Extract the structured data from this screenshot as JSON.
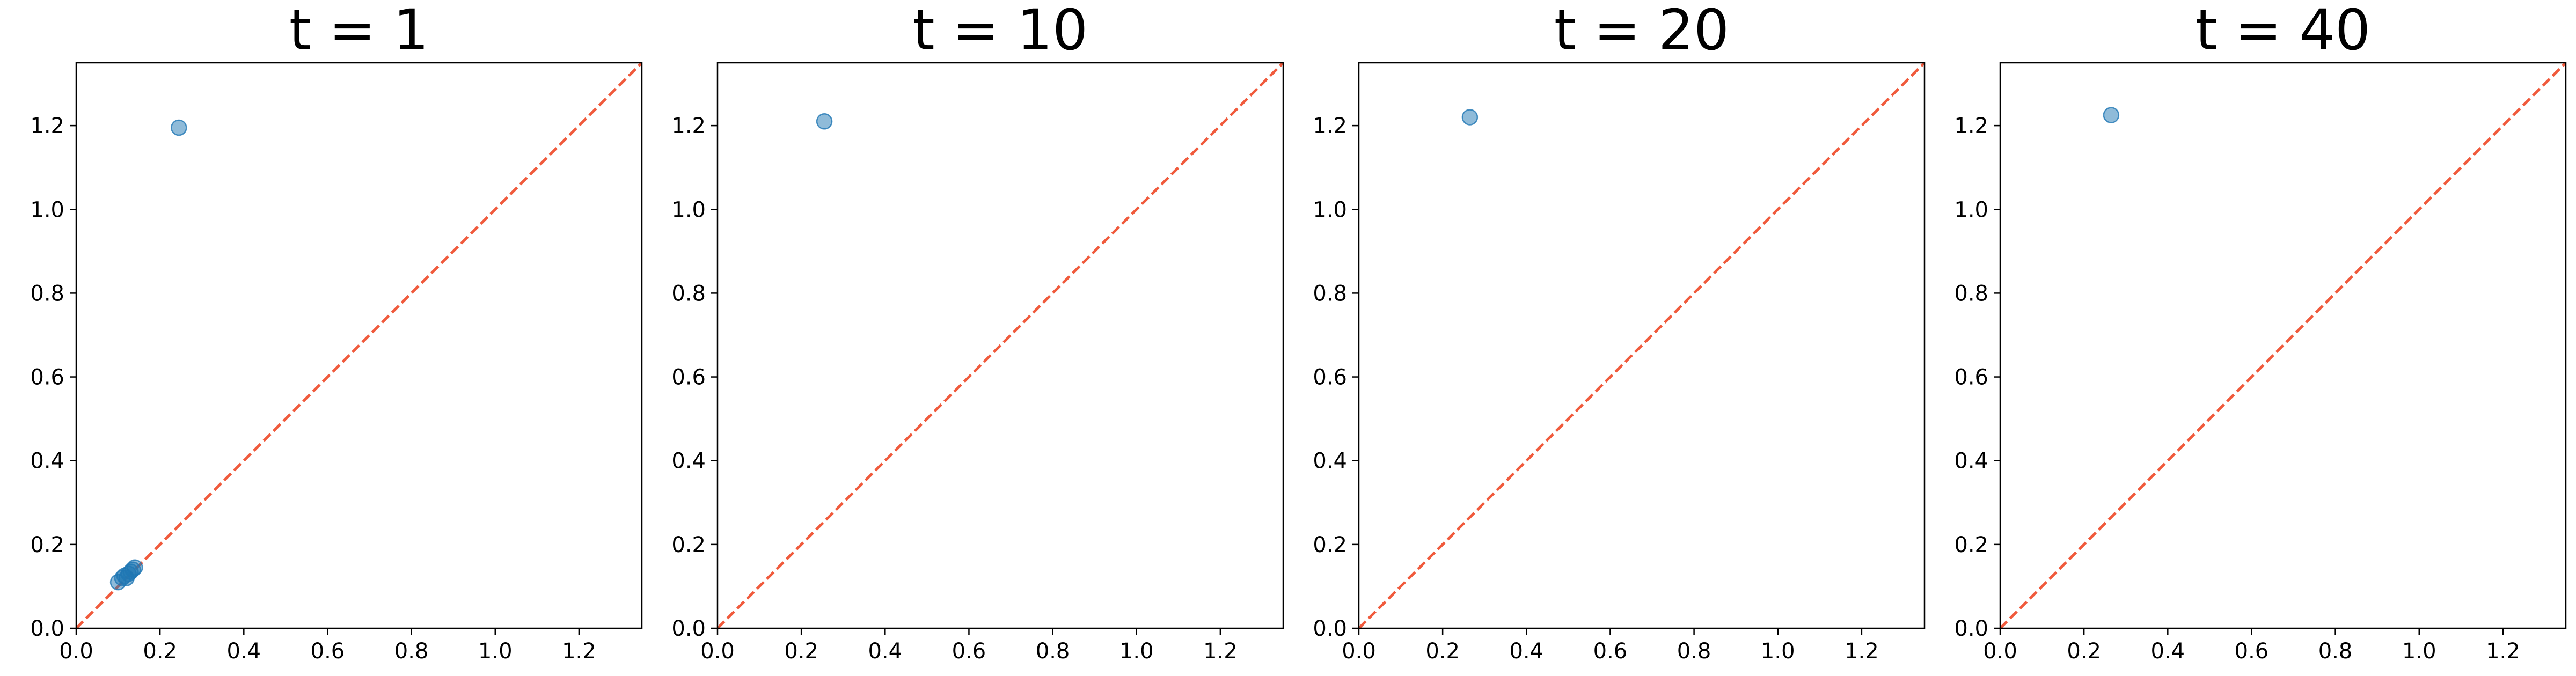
{
  "chart_data": [
    {
      "type": "scatter",
      "title": "t = 1",
      "xlabel": "",
      "ylabel": "",
      "xlim": [
        0.0,
        1.35
      ],
      "ylim": [
        0.0,
        1.35
      ],
      "xticks": [
        "0.0",
        "0.2",
        "0.4",
        "0.6",
        "0.8",
        "1.0",
        "1.2"
      ],
      "yticks": [
        "0.0",
        "0.2",
        "0.4",
        "0.6",
        "0.8",
        "1.0",
        "1.2"
      ],
      "grid": false,
      "reference_line": "y = x",
      "points": [
        {
          "x": 0.245,
          "y": 1.195
        },
        {
          "x": 0.1,
          "y": 0.11
        },
        {
          "x": 0.11,
          "y": 0.12
        },
        {
          "x": 0.115,
          "y": 0.125
        },
        {
          "x": 0.12,
          "y": 0.12
        },
        {
          "x": 0.125,
          "y": 0.13
        },
        {
          "x": 0.13,
          "y": 0.135
        },
        {
          "x": 0.135,
          "y": 0.14
        },
        {
          "x": 0.14,
          "y": 0.145
        }
      ]
    },
    {
      "type": "scatter",
      "title": "t = 10",
      "xlabel": "",
      "ylabel": "",
      "xlim": [
        0.0,
        1.35
      ],
      "ylim": [
        0.0,
        1.35
      ],
      "xticks": [
        "0.0",
        "0.2",
        "0.4",
        "0.6",
        "0.8",
        "1.0",
        "1.2"
      ],
      "yticks": [
        "0.0",
        "0.2",
        "0.4",
        "0.6",
        "0.8",
        "1.0",
        "1.2"
      ],
      "grid": false,
      "reference_line": "y = x",
      "points": [
        {
          "x": 0.255,
          "y": 1.21
        }
      ]
    },
    {
      "type": "scatter",
      "title": "t = 20",
      "xlabel": "",
      "ylabel": "",
      "xlim": [
        0.0,
        1.35
      ],
      "ylim": [
        0.0,
        1.35
      ],
      "xticks": [
        "0.0",
        "0.2",
        "0.4",
        "0.6",
        "0.8",
        "1.0",
        "1.2"
      ],
      "yticks": [
        "0.0",
        "0.2",
        "0.4",
        "0.6",
        "0.8",
        "1.0",
        "1.2"
      ],
      "grid": false,
      "reference_line": "y = x",
      "points": [
        {
          "x": 0.265,
          "y": 1.22
        }
      ]
    },
    {
      "type": "scatter",
      "title": "t = 40",
      "xlabel": "",
      "ylabel": "",
      "xlim": [
        0.0,
        1.35
      ],
      "ylim": [
        0.0,
        1.35
      ],
      "xticks": [
        "0.0",
        "0.2",
        "0.4",
        "0.6",
        "0.8",
        "1.0",
        "1.2"
      ],
      "yticks": [
        "0.0",
        "0.2",
        "0.4",
        "0.6",
        "0.8",
        "1.0",
        "1.2"
      ],
      "grid": false,
      "reference_line": "y = x",
      "points": [
        {
          "x": 0.265,
          "y": 1.225
        }
      ]
    }
  ],
  "colors": {
    "point_fill": "#1f77b4",
    "point_stroke": "#1f77b4",
    "reference_line": "#f05a3c",
    "axes": "#000000",
    "background": "#ffffff"
  }
}
